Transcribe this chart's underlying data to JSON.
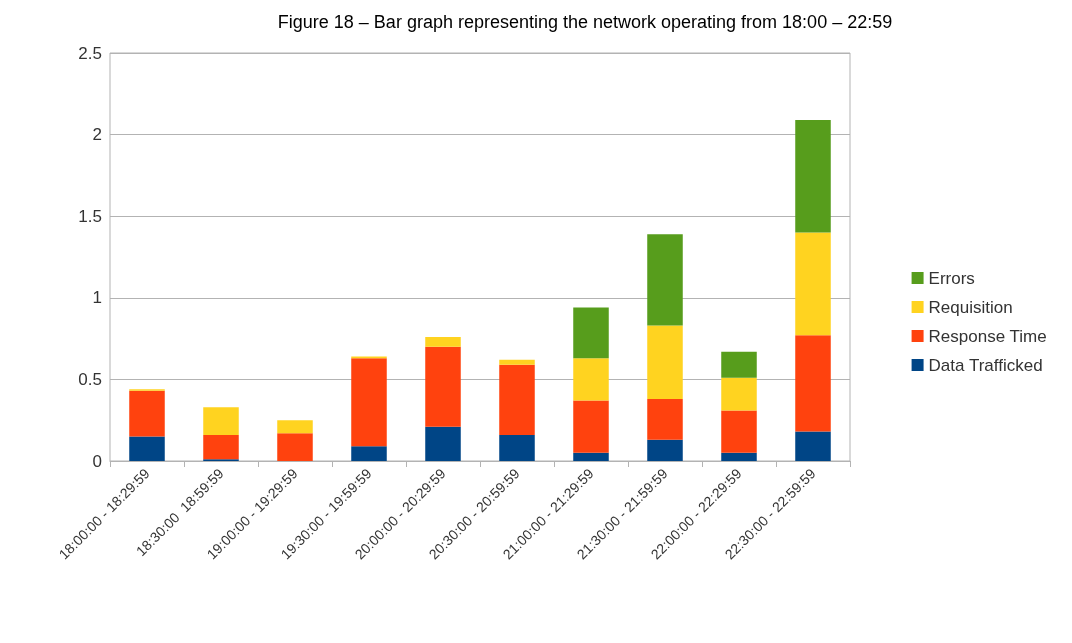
{
  "chart_data": {
    "type": "bar",
    "title": "Figure 18 – Bar graph representing the network operating from 18:00 – 22:59",
    "categories": [
      "18:00:00 - 18:29:59",
      "18:30:00  18:59:59",
      "19:00:00 - 19:29:59",
      "19:30:00 - 19:59:59",
      "20:00:00 - 20:29:59",
      "20:30:00 - 20:59:59",
      "21:00:00 - 21:29:59",
      "21:30:00 - 21:59:59",
      "22:00:00 - 22:29:59",
      "22:30:00 - 22:59:59"
    ],
    "series": [
      {
        "name": "Data Trafficked",
        "color": "#004586",
        "values": [
          0.15,
          0.01,
          0,
          0.09,
          0.21,
          0.16,
          0.05,
          0.13,
          0.05,
          0.18
        ]
      },
      {
        "name": "Response Time",
        "color": "#ff420e",
        "values": [
          0.28,
          0.15,
          0.17,
          0.54,
          0.49,
          0.43,
          0.32,
          0.25,
          0.26,
          0.59
        ]
      },
      {
        "name": "Requisition",
        "color": "#ffd320",
        "values": [
          0.01,
          0.17,
          0.08,
          0.01,
          0.06,
          0.03,
          0.26,
          0.45,
          0.2,
          0.63
        ]
      },
      {
        "name": "Errors",
        "color": "#579d1c",
        "values": [
          0,
          0,
          0,
          0,
          0,
          0,
          0.31,
          0.56,
          0.16,
          0.69
        ]
      }
    ],
    "stacked": true,
    "ylim": [
      0,
      2.5
    ],
    "yticks": [
      0,
      0.5,
      1,
      1.5,
      2,
      2.5
    ],
    "grid": "y",
    "legend": "right"
  }
}
